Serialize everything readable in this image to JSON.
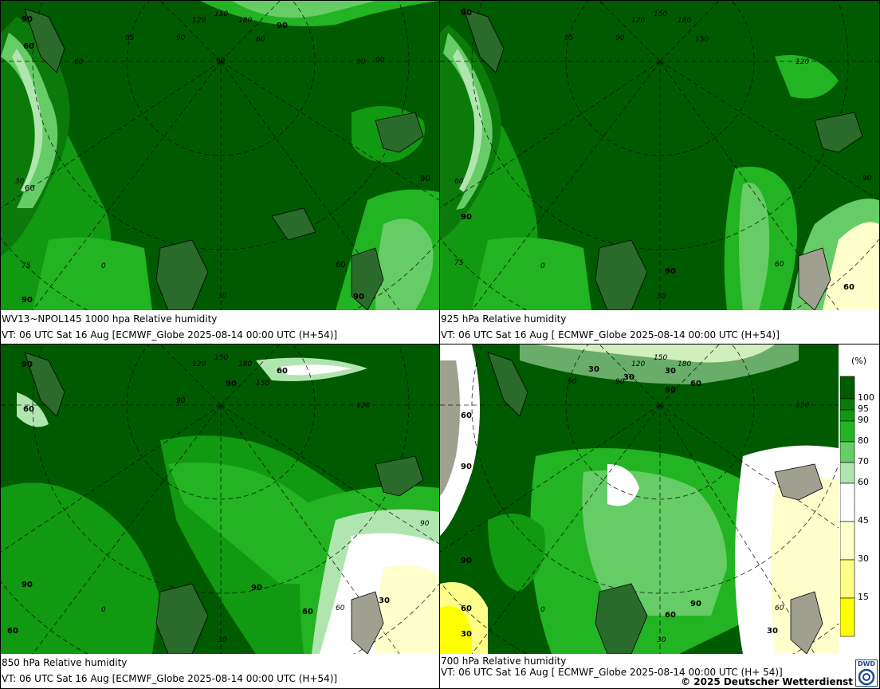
{
  "panels": [
    {
      "id": "p1000",
      "title": "WV13~NPOL145 1000 hpa Relative humidity",
      "subtitle": "VT: 06 UTC Sat  16 Aug [ECMWF_Globe 2025-08-14 00:00 UTC  (H+54)]",
      "contour_labels": [
        "90",
        "60",
        "90",
        "60",
        "90",
        "90",
        "90",
        "90",
        "60",
        "90"
      ],
      "grid_labels": [
        "150",
        "180",
        "120",
        "90",
        "85",
        "60",
        "30",
        "0",
        "75",
        "30",
        "90",
        "60"
      ]
    },
    {
      "id": "p925",
      "title": "925 hPa Relative humidity",
      "subtitle": "VT: 06 UTC Sat  16 Aug [ ECMWF_Globe 2025-08-14 00:00 UTC  (H+54)]",
      "contour_labels": [
        "90",
        "90",
        "90",
        "60"
      ],
      "grid_labels": [
        "150",
        "180",
        "120",
        "90",
        "85",
        "120",
        "150",
        "60",
        "30",
        "0",
        "75",
        "90",
        "60"
      ]
    },
    {
      "id": "p850",
      "title": "850 hPa  Relative humidity",
      "subtitle": "VT: 06 UTC Sat  16 Aug [ECMWF_Globe 2025-08-14 00:00 UTC  (H+54)]",
      "contour_labels": [
        "90",
        "60",
        "90",
        "60",
        "90",
        "60",
        "90",
        "30",
        "60"
      ],
      "grid_labels": [
        "150",
        "180",
        "120",
        "150",
        "120",
        "90",
        "60",
        "30",
        "0",
        "90"
      ]
    },
    {
      "id": "p700",
      "title": "700 hPa Relative humidity",
      "subtitle": "VT: 06 UTC Sat  16 Aug [ ECMWF_Globe 2025-08-14 00:00 UTC  (H+ 54)]",
      "contour_labels": [
        "30",
        "30",
        "90",
        "60",
        "60",
        "90",
        "90",
        "60",
        "90",
        "30",
        "30",
        "60",
        "30"
      ],
      "grid_labels": [
        "150",
        "180",
        "120",
        "90",
        "120",
        "60",
        "30",
        "0",
        "90"
      ]
    }
  ],
  "legend": {
    "unit": "(%)",
    "ticks": [
      "100",
      "95",
      "90",
      "80",
      "70",
      "60",
      "45",
      "30",
      "15"
    ],
    "colors": [
      "#005a00",
      "#0b7a0b",
      "#119911",
      "#22b422",
      "#66cc66",
      "#b0e5b0",
      "#ffffff",
      "#ffffcc",
      "#ffff88",
      "#ffff00"
    ]
  },
  "credit": "© 2025 Deutscher Wetterdienst",
  "logo_text": "DWD",
  "colors": {
    "rh100": "#005a00",
    "rh95": "#0b7a0b",
    "rh90": "#119911",
    "rh80": "#22b422",
    "rh70": "#66cc66",
    "rh60": "#b0e5b0",
    "rh45": "#ffffff",
    "rh30": "#ffffcc",
    "rh15": "#ffff88",
    "rh0": "#ffff00",
    "terrain": "#a0a090"
  }
}
